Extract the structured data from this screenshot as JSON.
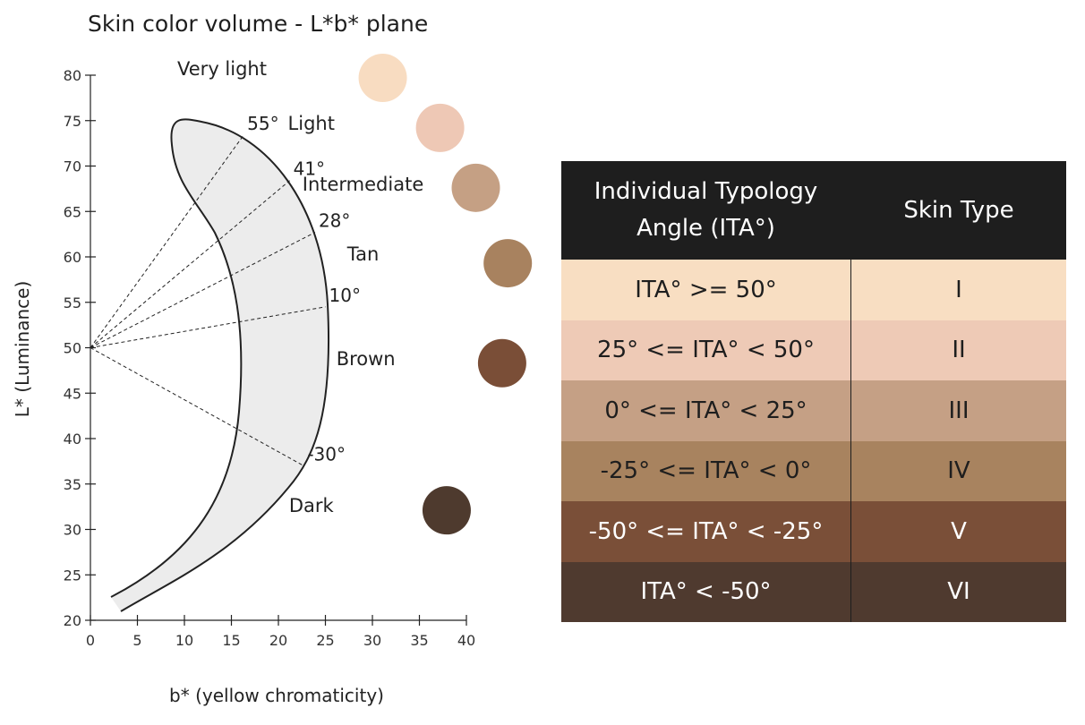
{
  "title": "Skin color volume - L*b* plane",
  "axes": {
    "xlabel": "b* (yellow chromaticity)",
    "ylabel": "L* (Luminance)",
    "x_ticks": [
      0,
      5,
      10,
      15,
      20,
      25,
      30,
      35,
      40
    ],
    "y_ticks": [
      20,
      25,
      30,
      35,
      40,
      45,
      50,
      55,
      60,
      65,
      70,
      75,
      80
    ],
    "xlim": [
      0,
      40
    ],
    "ylim": [
      20,
      80
    ]
  },
  "region_labels": [
    {
      "text": "Very light",
      "b": 14,
      "L": 80
    },
    {
      "text": "Light",
      "b": 23.5,
      "L": 74
    },
    {
      "text": "Intermediate",
      "b": 29,
      "L": 67.3
    },
    {
      "text": "Tan",
      "b": 29,
      "L": 59.6
    },
    {
      "text": "Brown",
      "b": 29.3,
      "L": 48.1
    },
    {
      "text": "Dark",
      "b": 23.5,
      "L": 31.9
    }
  ],
  "angle_labels": [
    {
      "text": "55°",
      "end_b": 16.3,
      "end_L": 73.4
    },
    {
      "text": "41°",
      "end_b": 21.2,
      "end_L": 68.4
    },
    {
      "text": "28°",
      "end_b": 23.9,
      "end_L": 62.7
    },
    {
      "text": "10°",
      "end_b": 25,
      "end_L": 54.5
    },
    {
      "text": "-30°",
      "end_b": 22.7,
      "end_L": 37.0
    }
  ],
  "swatches": [
    {
      "color": "#f8dcc1",
      "b": 31.1,
      "L": 79.7
    },
    {
      "color": "#eec8b5",
      "b": 37.2,
      "L": 74.2
    },
    {
      "color": "#c5a084",
      "b": 41.0,
      "L": 67.6
    },
    {
      "color": "#a8825f",
      "b": 44.4,
      "L": 59.3
    },
    {
      "color": "#7a4e37",
      "b": 43.8,
      "L": 48.3
    },
    {
      "color": "#4e3a2e",
      "b": 37.9,
      "L": 32.1
    }
  ],
  "table": {
    "headers": [
      "Individual Typology Angle (ITA°)",
      "Skin Type"
    ],
    "rows": [
      {
        "range": "ITA° >= 50°",
        "type": "I",
        "color": "#f8dec2"
      },
      {
        "range": "25° <= ITA° < 50°",
        "type": "II",
        "color": "#eecab6"
      },
      {
        "range": "0° <= ITA° < 25°",
        "type": "III",
        "color": "#c5a085"
      },
      {
        "range": "-25° <= ITA° < 0°",
        "type": "IV",
        "color": "#a8835f"
      },
      {
        "range": "-50° <= ITA° < -25°",
        "type": "V",
        "color": "#7a4f38"
      },
      {
        "range": "ITA° < -50°",
        "type": "VI",
        "color": "#4f3a2f"
      }
    ]
  }
}
